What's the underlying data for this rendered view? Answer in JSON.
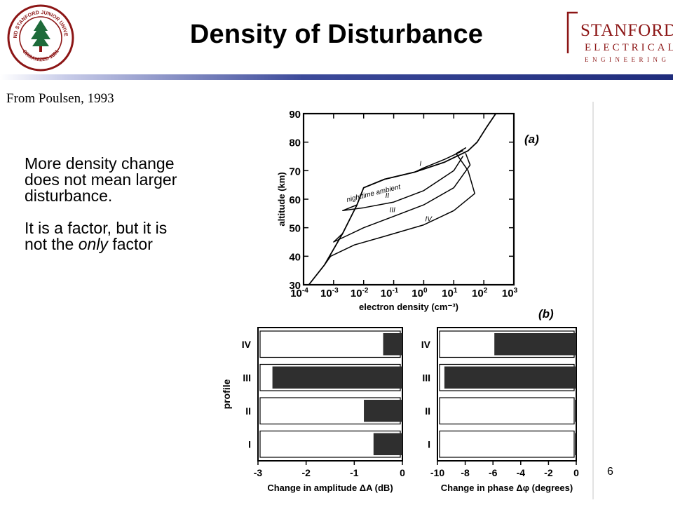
{
  "slide": {
    "title": "Density of Disturbance",
    "source": "From Poulsen, 1993",
    "bullets": [
      {
        "pre": "More density change does not mean larger disturbance.",
        "em": "",
        "post": ""
      },
      {
        "pre": "It is a factor, but it is not the ",
        "em": "only",
        "post": " factor"
      }
    ],
    "page_number": "6",
    "logo": {
      "line1": "STANFORD",
      "line2": "ELECTRICAL",
      "line3": "ENGINEERING"
    },
    "seal": {
      "top_text": "LELAND STANFORD JUNIOR UNIVERSITY",
      "bottom_text": "ORGANIZED 1891"
    }
  },
  "colors": {
    "title_rule": "#2a3a8a",
    "cardinal": "#8c1515",
    "shade": "#2f2f2f"
  },
  "chart_data": [
    {
      "type": "line",
      "panel_label": "(a)",
      "xlabel": "electron density (cm⁻³)",
      "ylabel": "altitude (km)",
      "x_scale": "log",
      "x_ticks": [
        {
          "value": 0.0001,
          "base": "10",
          "exp": "-4"
        },
        {
          "value": 0.001,
          "base": "10",
          "exp": "-3"
        },
        {
          "value": 0.01,
          "base": "10",
          "exp": "-2"
        },
        {
          "value": 0.1,
          "base": "10",
          "exp": "-1"
        },
        {
          "value": 1,
          "base": "10",
          "exp": "0"
        },
        {
          "value": 10,
          "base": "10",
          "exp": "1"
        },
        {
          "value": 100,
          "base": "10",
          "exp": "2"
        },
        {
          "value": 1000,
          "base": "10",
          "exp": "3"
        }
      ],
      "y_ticks": [
        30,
        40,
        50,
        60,
        70,
        80,
        90
      ],
      "xlim": [
        0.0001,
        1000
      ],
      "ylim": [
        30,
        90
      ],
      "series": [
        {
          "name": "nighttime ambient",
          "points": [
            [
              0.00015,
              30
            ],
            [
              0.0005,
              37
            ],
            [
              0.002,
              48
            ],
            [
              0.006,
              58
            ],
            [
              0.01,
              64
            ],
            [
              0.05,
              67
            ],
            [
              0.5,
              69.5
            ],
            [
              5,
              73
            ],
            [
              30,
              77
            ],
            [
              60,
              80
            ],
            [
              120,
              85
            ],
            [
              250,
              90
            ]
          ]
        },
        {
          "name": "I",
          "points": [
            [
              0.01,
              64
            ],
            [
              0.05,
              67
            ],
            [
              0.5,
              69.5
            ],
            [
              1,
              71
            ],
            [
              5,
              74
            ],
            [
              20,
              77
            ]
          ]
        },
        {
          "name": "II",
          "points": [
            [
              0.006,
              58
            ],
            [
              0.002,
              56
            ],
            [
              0.01,
              57
            ],
            [
              0.1,
              59
            ],
            [
              1,
              63
            ],
            [
              10,
              70
            ],
            [
              20,
              75
            ]
          ]
        },
        {
          "name": "III",
          "points": [
            [
              0.002,
              48
            ],
            [
              0.001,
              45
            ],
            [
              0.01,
              50
            ],
            [
              0.1,
              54
            ],
            [
              1,
              58
            ],
            [
              10,
              64
            ],
            [
              35,
              72
            ],
            [
              25,
              76
            ]
          ]
        },
        {
          "name": "IV",
          "points": [
            [
              0.0005,
              37
            ],
            [
              0.0008,
              40
            ],
            [
              0.005,
              44
            ],
            [
              0.05,
              47
            ],
            [
              1,
              51
            ],
            [
              10,
              56
            ],
            [
              50,
              62
            ],
            [
              30,
              70
            ],
            [
              12,
              76
            ],
            [
              25,
              78
            ]
          ]
        }
      ]
    },
    {
      "type": "bar",
      "panel_label": "(b)",
      "orientation": "horizontal",
      "ylabel": "profile",
      "xlabel": "Change in amplitude ΔA (dB)",
      "categories": [
        "IV",
        "III",
        "II",
        "I"
      ],
      "values": [
        -0.4,
        -2.7,
        -0.8,
        -0.6
      ],
      "xlim": [
        -3,
        0
      ],
      "x_ticks": [
        "-3",
        "-2",
        "-1",
        "0"
      ]
    },
    {
      "type": "bar",
      "orientation": "horizontal",
      "xlabel": "Change in phase Δφ (degrees)",
      "categories": [
        "IV",
        "III",
        "II",
        "I"
      ],
      "values": [
        -5.9,
        -9.5,
        -0.1,
        -0.1
      ],
      "xlim": [
        -10,
        0
      ],
      "x_ticks": [
        "-10",
        "-8",
        "-6",
        "-4",
        "-2",
        "0"
      ]
    }
  ]
}
